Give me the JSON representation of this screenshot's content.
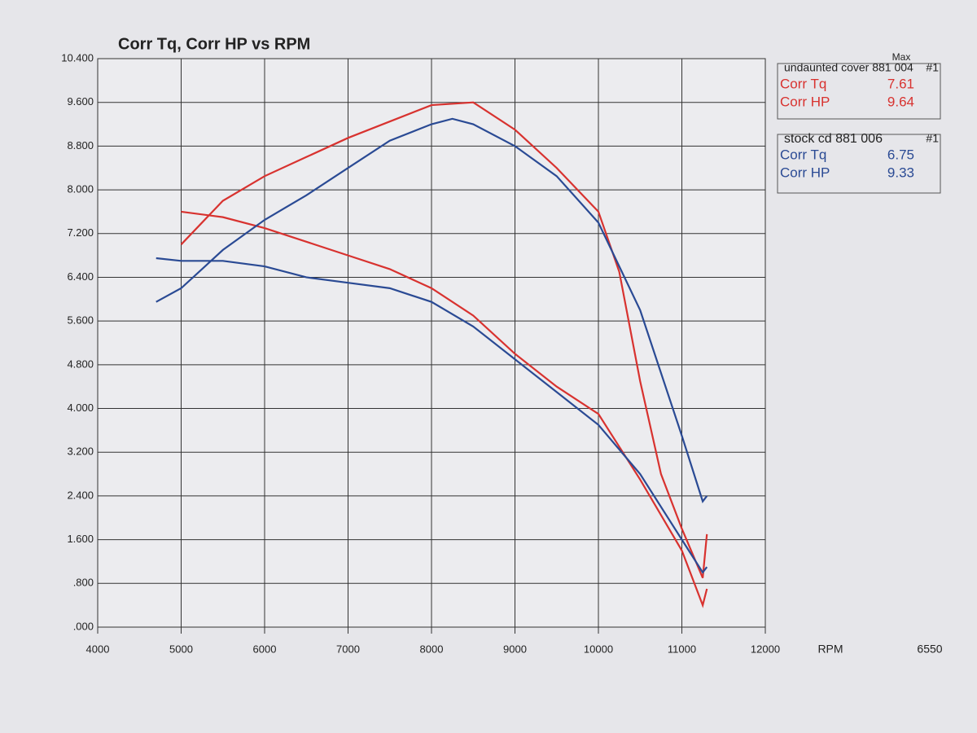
{
  "chart_data": {
    "type": "line",
    "title": "Corr Tq, Corr HP vs RPM",
    "x_label": "RPM",
    "corner_text": "6550",
    "legend_header": "Max",
    "legend_titles": [
      {
        "title": "undaunted cover 881 004",
        "run": "#1"
      },
      {
        "title": "stock cd 881 006",
        "run": "#1"
      }
    ],
    "xlim": [
      4000,
      12000
    ],
    "xticks": [
      4000,
      5000,
      6000,
      7000,
      8000,
      9000,
      10000,
      11000,
      12000
    ],
    "ylim": [
      0,
      10.4
    ],
    "yticks": [
      {
        "value": 0,
        "label": ".000"
      },
      {
        "value": 0.8,
        "label": ".800"
      },
      {
        "value": 1.6,
        "label": "1.600"
      },
      {
        "value": 2.4,
        "label": "2.400"
      },
      {
        "value": 3.2,
        "label": "3.200"
      },
      {
        "value": 4.0,
        "label": "4.000"
      },
      {
        "value": 4.8,
        "label": "4.800"
      },
      {
        "value": 5.6,
        "label": "5.600"
      },
      {
        "value": 6.4,
        "label": "6.400"
      },
      {
        "value": 7.2,
        "label": "7.200"
      },
      {
        "value": 8.0,
        "label": "8.000"
      },
      {
        "value": 8.8,
        "label": "8.800"
      },
      {
        "value": 9.6,
        "label": "9.600"
      },
      {
        "value": 10.4,
        "label": "10.400"
      }
    ],
    "grid": true,
    "series": [
      {
        "name": "Corr Tq",
        "color": "#d8322f",
        "max": 7.61,
        "x": [
          5000,
          5500,
          6000,
          6500,
          7000,
          7500,
          8000,
          8500,
          9000,
          9500,
          10000,
          10500,
          11000,
          11250,
          11300
        ],
        "values": [
          7.6,
          7.5,
          7.3,
          7.05,
          6.8,
          6.55,
          6.2,
          5.7,
          5.0,
          4.4,
          3.9,
          2.7,
          1.4,
          0.4,
          0.7
        ]
      },
      {
        "name": "Corr HP",
        "color": "#d8322f",
        "max": 9.64,
        "x": [
          5000,
          5500,
          6000,
          6500,
          7000,
          7500,
          8000,
          8500,
          9000,
          9500,
          10000,
          10250,
          10500,
          10750,
          11000,
          11250,
          11300
        ],
        "values": [
          7.0,
          7.8,
          8.25,
          8.6,
          8.95,
          9.25,
          9.55,
          9.6,
          9.1,
          8.4,
          7.6,
          6.5,
          4.5,
          2.8,
          1.8,
          0.9,
          1.7
        ]
      },
      {
        "name": "Corr Tq",
        "color": "#2a4a94",
        "max": 6.75,
        "x": [
          4700,
          5000,
          5500,
          6000,
          6500,
          7000,
          7500,
          8000,
          8500,
          9000,
          9500,
          10000,
          10500,
          11000,
          11250,
          11300
        ],
        "values": [
          6.75,
          6.7,
          6.7,
          6.6,
          6.4,
          6.3,
          6.2,
          5.95,
          5.5,
          4.9,
          4.3,
          3.7,
          2.8,
          1.6,
          1.0,
          1.1
        ]
      },
      {
        "name": "Corr HP",
        "color": "#2a4a94",
        "max": 9.33,
        "x": [
          4700,
          5000,
          5500,
          6000,
          6500,
          7000,
          7500,
          8000,
          8250,
          8500,
          9000,
          9500,
          10000,
          10500,
          11000,
          11250,
          11300
        ],
        "values": [
          5.95,
          6.2,
          6.9,
          7.45,
          7.9,
          8.4,
          8.9,
          9.2,
          9.3,
          9.2,
          8.8,
          8.25,
          7.4,
          5.8,
          3.5,
          2.3,
          2.4
        ]
      }
    ]
  }
}
